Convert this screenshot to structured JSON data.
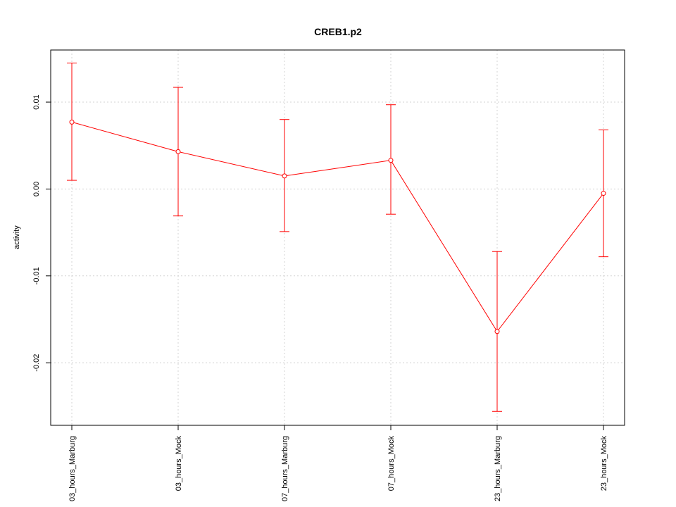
{
  "chart_data": {
    "type": "line",
    "title": "CREB1.p2",
    "xlabel": "",
    "ylabel": "activity",
    "categories": [
      "03_hours_Marburg",
      "03_hours_Mock",
      "07_hours_Marburg",
      "07_hours_Mock",
      "23_hours_Marburg",
      "23_hours_Mock"
    ],
    "series": [
      {
        "values": [
          0.0077,
          0.0043,
          0.0015,
          0.0033,
          -0.0164,
          -0.0005
        ],
        "upper": [
          0.0145,
          0.0117,
          0.008,
          0.0097,
          -0.0072,
          0.0068
        ],
        "lower": [
          0.001,
          -0.0031,
          -0.0049,
          -0.0029,
          -0.0256,
          -0.0078
        ],
        "color": "#ff0000"
      }
    ],
    "ylim": [
      -0.0272,
      0.016
    ],
    "yticks": [
      0.01,
      0.0,
      -0.01,
      -0.02
    ],
    "ytick_labels": [
      "0.01",
      "0.00",
      "-0.01",
      "-0.02"
    ],
    "grid": true
  }
}
